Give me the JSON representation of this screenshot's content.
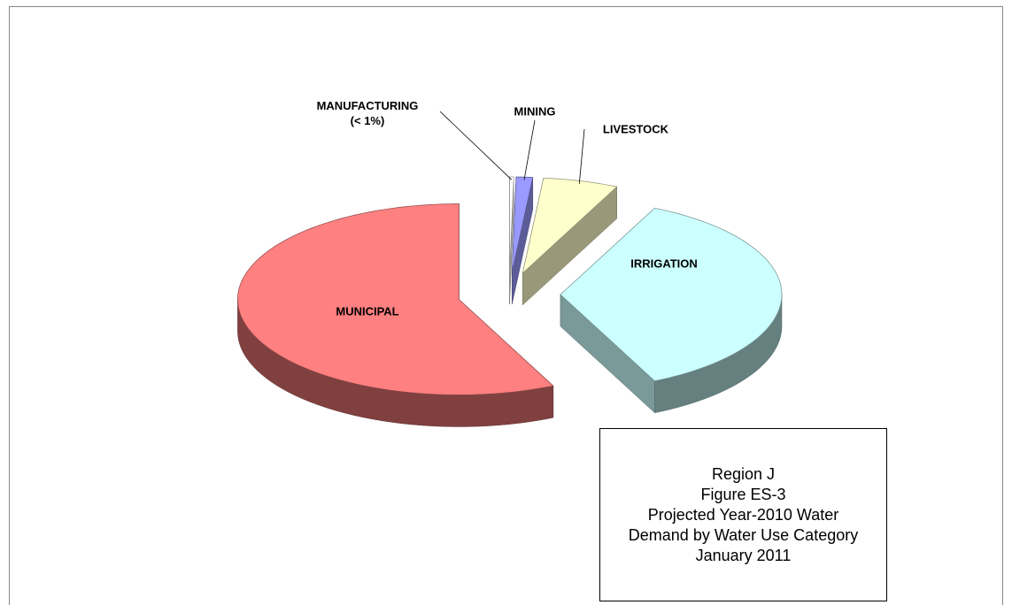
{
  "chart_data": {
    "type": "pie",
    "title": [
      "Region J",
      "Figure ES-3",
      "Projected Year-2010 Water",
      "Demand by Water Use Category",
      "January 2011"
    ],
    "categories": [
      "MANUFACTURING\n(< 1%)",
      "MINING",
      "LIVESTOCK",
      "IRRIGATION",
      "MUNICIPAL"
    ],
    "values": [
      0.3,
      1.2,
      5.5,
      36,
      57
    ],
    "colors": [
      "#ffffff",
      "#9999ff",
      "#ffffcc",
      "#ccffff",
      "#ff8080"
    ],
    "start_angle": 90,
    "direction": "clockwise",
    "exploded": true,
    "three_d": true
  }
}
